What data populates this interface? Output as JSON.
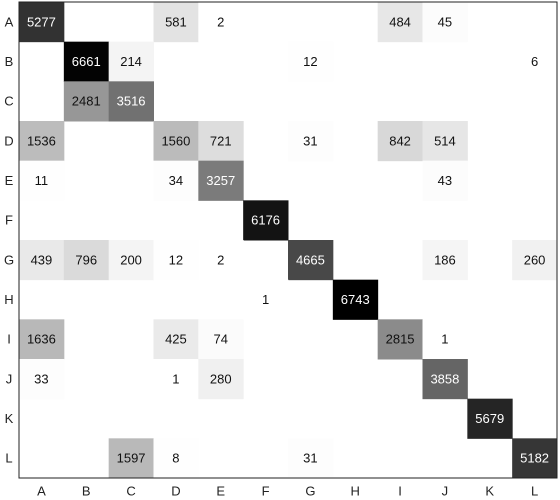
{
  "chart_data": {
    "type": "heatmap",
    "title": "",
    "xlabel": "",
    "ylabel": "",
    "x_categories": [
      "A",
      "B",
      "C",
      "D",
      "E",
      "F",
      "G",
      "H",
      "I",
      "J",
      "K",
      "L"
    ],
    "y_categories": [
      "A",
      "B",
      "C",
      "D",
      "E",
      "F",
      "G",
      "H",
      "I",
      "J",
      "K",
      "L"
    ],
    "colormap": "grayscale-reversed",
    "value_range": [
      0,
      6743
    ],
    "grid": false,
    "cells": [
      {
        "row": "A",
        "col": "A",
        "value": 5277
      },
      {
        "row": "A",
        "col": "D",
        "value": 581
      },
      {
        "row": "A",
        "col": "E",
        "value": 2
      },
      {
        "row": "A",
        "col": "I",
        "value": 484
      },
      {
        "row": "A",
        "col": "J",
        "value": 45
      },
      {
        "row": "B",
        "col": "B",
        "value": 6661
      },
      {
        "row": "B",
        "col": "C",
        "value": 214
      },
      {
        "row": "B",
        "col": "G",
        "value": 12
      },
      {
        "row": "B",
        "col": "L",
        "value": 6
      },
      {
        "row": "C",
        "col": "B",
        "value": 2481
      },
      {
        "row": "C",
        "col": "C",
        "value": 3516
      },
      {
        "row": "D",
        "col": "A",
        "value": 1536
      },
      {
        "row": "D",
        "col": "D",
        "value": 1560
      },
      {
        "row": "D",
        "col": "E",
        "value": 721
      },
      {
        "row": "D",
        "col": "G",
        "value": 31
      },
      {
        "row": "D",
        "col": "I",
        "value": 842
      },
      {
        "row": "D",
        "col": "J",
        "value": 514
      },
      {
        "row": "E",
        "col": "A",
        "value": 11
      },
      {
        "row": "E",
        "col": "D",
        "value": 34
      },
      {
        "row": "E",
        "col": "E",
        "value": 3257
      },
      {
        "row": "E",
        "col": "J",
        "value": 43
      },
      {
        "row": "F",
        "col": "F",
        "value": 6176
      },
      {
        "row": "G",
        "col": "A",
        "value": 439
      },
      {
        "row": "G",
        "col": "B",
        "value": 796
      },
      {
        "row": "G",
        "col": "C",
        "value": 200
      },
      {
        "row": "G",
        "col": "D",
        "value": 12
      },
      {
        "row": "G",
        "col": "E",
        "value": 2
      },
      {
        "row": "G",
        "col": "G",
        "value": 4665
      },
      {
        "row": "G",
        "col": "J",
        "value": 186
      },
      {
        "row": "G",
        "col": "L",
        "value": 260
      },
      {
        "row": "H",
        "col": "F",
        "value": 1
      },
      {
        "row": "H",
        "col": "H",
        "value": 6743
      },
      {
        "row": "I",
        "col": "A",
        "value": 1636
      },
      {
        "row": "I",
        "col": "D",
        "value": 425
      },
      {
        "row": "I",
        "col": "E",
        "value": 74
      },
      {
        "row": "I",
        "col": "I",
        "value": 2815
      },
      {
        "row": "I",
        "col": "J",
        "value": 1
      },
      {
        "row": "J",
        "col": "A",
        "value": 33
      },
      {
        "row": "J",
        "col": "D",
        "value": 1
      },
      {
        "row": "J",
        "col": "E",
        "value": 280
      },
      {
        "row": "J",
        "col": "J",
        "value": 3858
      },
      {
        "row": "K",
        "col": "K",
        "value": 5679
      },
      {
        "row": "L",
        "col": "C",
        "value": 1597
      },
      {
        "row": "L",
        "col": "D",
        "value": 8
      },
      {
        "row": "L",
        "col": "G",
        "value": 31
      },
      {
        "row": "L",
        "col": "L",
        "value": 5182
      }
    ]
  }
}
